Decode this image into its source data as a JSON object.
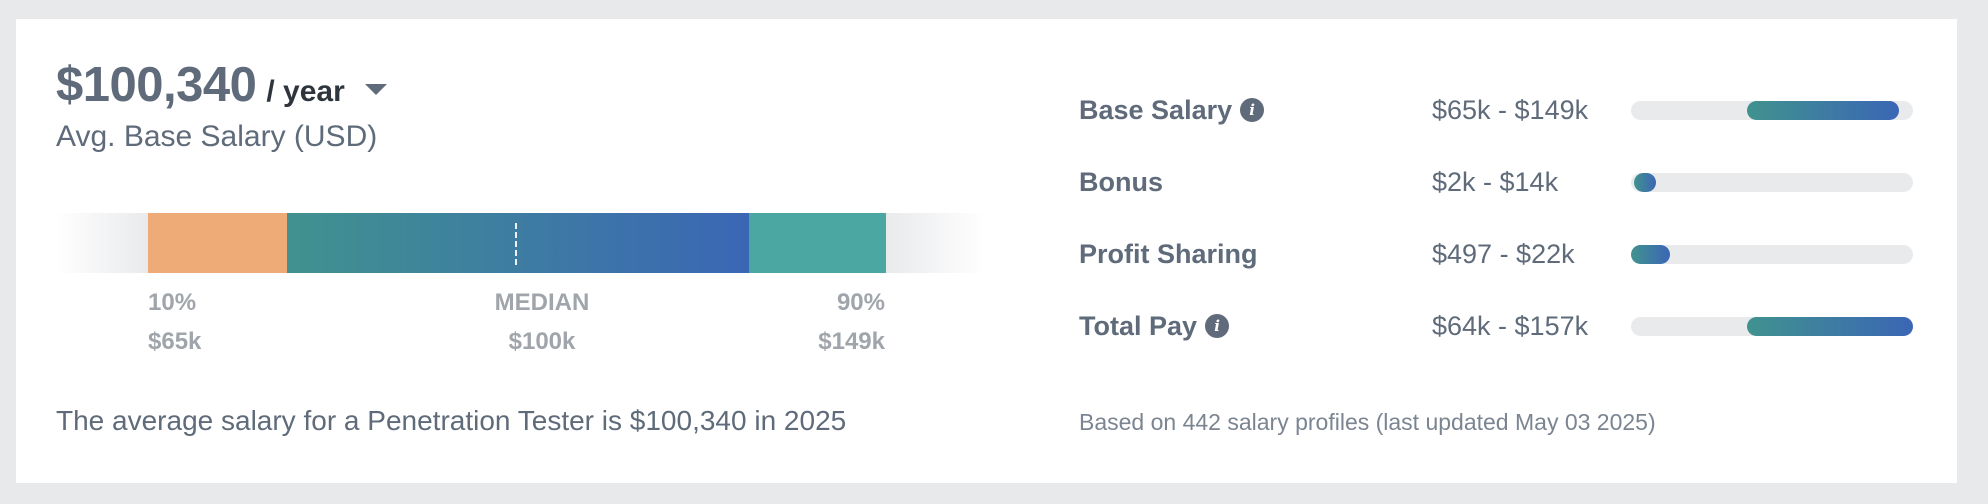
{
  "header": {
    "amount": "$100,340",
    "period": "/ year",
    "subtitle": "Avg. Base Salary (USD)"
  },
  "distribution": {
    "low_label": "10%",
    "low_value": "$65k",
    "median_label": "MEDIAN",
    "median_value": "$100k",
    "high_label": "90%",
    "high_value": "$149k",
    "colors": {
      "low": "#eeab78",
      "mid_start": "#40928f",
      "mid_end": "#3b66b5",
      "high": "#4aa7a2"
    }
  },
  "summary": "The average salary for a Penetration Tester is $100,340 in 2025",
  "breakdown": [
    {
      "name": "Base Salary",
      "range": "$65k - $149k",
      "has_info": true,
      "range_fraction": [
        0.41,
        0.95
      ]
    },
    {
      "name": "Bonus",
      "range": "$2k - $14k",
      "has_info": false,
      "range_fraction": [
        0.01,
        0.09
      ]
    },
    {
      "name": "Profit Sharing",
      "range": "$497 - $22k",
      "has_info": false,
      "range_fraction": [
        0.0,
        0.14
      ]
    },
    {
      "name": "Total Pay",
      "range": "$64k - $157k",
      "has_info": true,
      "range_fraction": [
        0.41,
        1.0
      ]
    }
  ],
  "footer_note": "Based on 442 salary profiles (last updated May 03 2025)"
}
